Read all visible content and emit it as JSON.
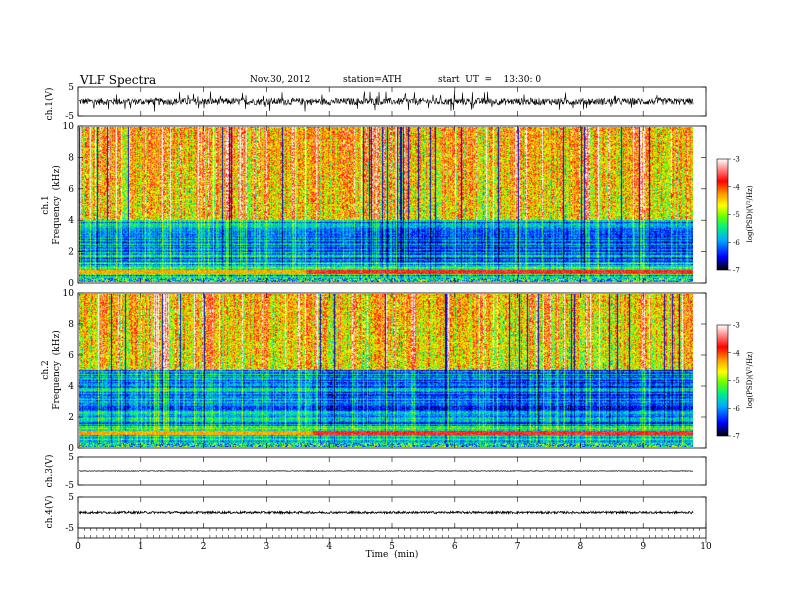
{
  "header": {
    "title": "VLF  Spectra",
    "date": "Nov.30, 2012",
    "station": "station=ATH",
    "start": "start  UT  =    13:30: 0"
  },
  "chart_data": {
    "type": "heatmap",
    "panels": [
      {
        "id": "ch1_wave",
        "type": "line",
        "ylabel": "ch.1(V)",
        "ylim": [
          -5,
          5
        ],
        "yticks": [
          "5",
          "-5"
        ],
        "baseline": 0,
        "noise_amplitude": 1.2,
        "spike_amplitude": 3.5
      },
      {
        "id": "ch1_spec",
        "type": "heatmap",
        "ylabel": "Frequency  (kHz)",
        "channel_label": "ch.1",
        "ylim": [
          0,
          10
        ],
        "yticks": [
          "0",
          "2",
          "4",
          "6",
          "8",
          "10"
        ]
      },
      {
        "id": "ch2_spec",
        "type": "heatmap",
        "ylabel": "Frequency  (kHz)",
        "channel_label": "ch.2",
        "ylim": [
          0,
          10
        ],
        "yticks": [
          "0",
          "2",
          "4",
          "6",
          "8",
          "10"
        ]
      },
      {
        "id": "ch3_wave",
        "type": "line",
        "ylabel": "ch.3(V)",
        "ylim": [
          -5,
          5
        ],
        "yticks": [
          "5",
          "-5"
        ],
        "baseline": 0,
        "noise_amplitude": 0.12
      },
      {
        "id": "ch4_wave",
        "type": "line",
        "ylabel": "ch.4(V)",
        "ylim": [
          -5,
          5
        ],
        "yticks": [
          "5",
          "-5"
        ],
        "baseline": 0,
        "noise_amplitude": 0.35
      }
    ],
    "x": {
      "label": "Time  (min)",
      "lim": [
        0,
        10
      ],
      "data_end": 9.8,
      "ticks": [
        "0",
        "1",
        "2",
        "3",
        "4",
        "5",
        "6",
        "7",
        "8",
        "9",
        "10"
      ]
    },
    "colorbar": {
      "label": "log(PSD)(V²/Hz)",
      "range": [
        -7,
        -3
      ],
      "ticks": [
        "-3",
        "-4",
        "-5",
        "-6",
        "-7"
      ],
      "colors": [
        "#000000",
        "#0000ff",
        "#00aaff",
        "#00ee88",
        "#66ff00",
        "#ffff00",
        "#ffa000",
        "#ff0000",
        "#ffffff"
      ]
    },
    "spectrogram_features": {
      "ch1": {
        "dark_band_khz": [
          1.2,
          4.0
        ],
        "strong_line_khz": 0.6,
        "step_time_min": 3.7,
        "noisy_above_khz": 4
      },
      "ch2": {
        "dark_band_khz": [
          1.5,
          5.2
        ],
        "strong_line_khz": 0.9,
        "step_time_min": 3.8,
        "noisy_above_khz": 5
      }
    }
  }
}
